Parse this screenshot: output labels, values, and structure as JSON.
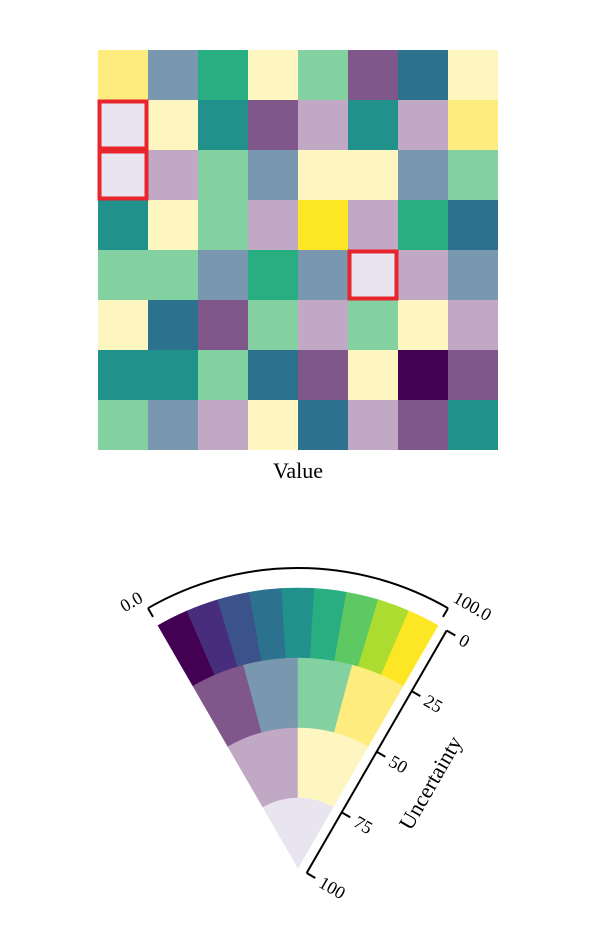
{
  "chart_data": {
    "type": "heatmap",
    "subtype": "value-suppressing uncertainty palette",
    "xlabel": "Value",
    "legend_value_label": "Uncertainty",
    "legend_value_ticks": [
      "0.0",
      "100.0"
    ],
    "legend_uncertainty_ticks": [
      "0",
      "25",
      "50",
      "75",
      "100"
    ],
    "palette_rows": [
      [
        "#440154",
        "#472d7b",
        "#3b528b",
        "#2c728e",
        "#21918c",
        "#28ae80",
        "#5ec962",
        "#addc30",
        "#fde725"
      ],
      [
        "#7f578a",
        "#7998b0",
        "#83d0a0",
        "#feec7e"
      ],
      [
        "#c1a8c4",
        "#fef6c0"
      ],
      [
        "#e8e4f0"
      ]
    ],
    "grid": [
      [
        "#feec7e",
        "#7998b0",
        "#28ae80",
        "#fef6c0",
        "#83d0a0",
        "#7f578a",
        "#2c728e",
        "#fef6c0"
      ],
      [
        "#e8e4f0",
        "#fef6c0",
        "#21918c",
        "#7f578a",
        "#c1a8c4",
        "#21918c",
        "#c1a8c4",
        "#feec7e"
      ],
      [
        "#e8e4f0",
        "#c1a8c4",
        "#83d0a0",
        "#7998b0",
        "#fef6c0",
        "#fef6c0",
        "#7998b0",
        "#83d0a0"
      ],
      [
        "#21918c",
        "#fef6c0",
        "#83d0a0",
        "#c1a8c4",
        "#fde725",
        "#c1a8c4",
        "#28ae80",
        "#2c728e"
      ],
      [
        "#83d0a0",
        "#83d0a0",
        "#7998b0",
        "#28ae80",
        "#7998b0",
        "#e8e4f0",
        "#c1a8c4",
        "#7998b0"
      ],
      [
        "#fef6c0",
        "#2c728e",
        "#7f578a",
        "#83d0a0",
        "#c1a8c4",
        "#83d0a0",
        "#fef6c0",
        "#c1a8c4"
      ],
      [
        "#21918c",
        "#21918c",
        "#83d0a0",
        "#2c728e",
        "#7f578a",
        "#fef6c0",
        "#440154",
        "#7f578a"
      ],
      [
        "#83d0a0",
        "#7998b0",
        "#c1a8c4",
        "#fef6c0",
        "#2c728e",
        "#c1a8c4",
        "#7f578a",
        "#21918c"
      ]
    ],
    "highlighted_cells": [
      [
        1,
        0
      ],
      [
        2,
        0
      ],
      [
        4,
        5
      ]
    ],
    "highlight_color": "#e8242c"
  }
}
